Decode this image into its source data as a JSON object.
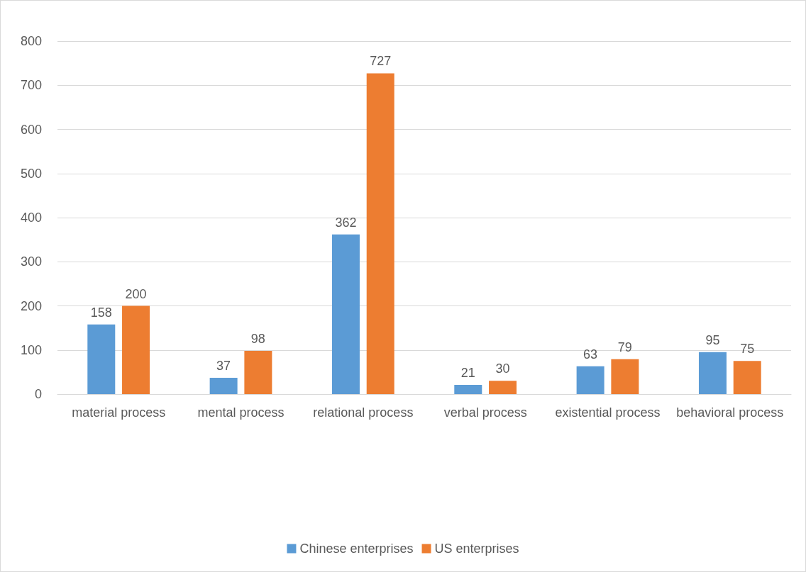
{
  "chart_data": {
    "type": "bar",
    "categories": [
      "material process",
      "mental process",
      "relational process",
      "verbal process",
      "existential process",
      "behavioral process"
    ],
    "series": [
      {
        "name": "Chinese enterprises",
        "color": "#5b9bd5",
        "values": [
          158,
          37,
          362,
          21,
          63,
          95
        ]
      },
      {
        "name": "US enterprises",
        "color": "#ed7d31",
        "values": [
          200,
          98,
          727,
          30,
          79,
          75
        ]
      }
    ],
    "ylim": [
      0,
      800
    ],
    "yticks": [
      0,
      100,
      200,
      300,
      400,
      500,
      600,
      700,
      800
    ],
    "grid": "y",
    "legend": "bottom",
    "data_labels": true
  }
}
